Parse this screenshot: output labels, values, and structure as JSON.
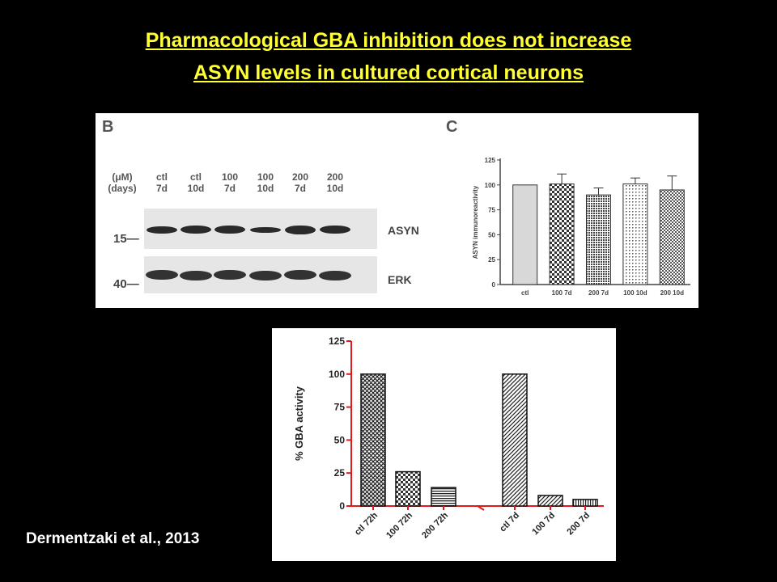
{
  "title": {
    "line1": "Pharmacological GBA inhibition does not increase",
    "line2": "ASYN levels in cultured cortical neurons"
  },
  "blot": {
    "panel_label": "B",
    "unit_label_1": "(μM)",
    "unit_label_2": "(days)",
    "lanes": [
      {
        "dose": "ctl",
        "days": "7d"
      },
      {
        "dose": "ctl",
        "days": "10d"
      },
      {
        "dose": "100",
        "days": "7d"
      },
      {
        "dose": "100",
        "days": "10d"
      },
      {
        "dose": "200",
        "days": "7d"
      },
      {
        "dose": "200",
        "days": "10d"
      }
    ],
    "rows": [
      {
        "protein": "ASYN",
        "marker": "15"
      },
      {
        "protein": "ERK",
        "marker": "40"
      }
    ]
  },
  "chart_data": [
    {
      "type": "bar",
      "panel_label": "C",
      "categories": [
        "ctl",
        "100 7d",
        "200 7d",
        "100 10d",
        "200 10d"
      ],
      "values": [
        100,
        101,
        90,
        101,
        95
      ],
      "errors": [
        0,
        10,
        7,
        6,
        14
      ],
      "ylabel": "ASYN immunoreactivity",
      "ylim": [
        0,
        125
      ],
      "yticks": [
        0,
        25,
        50,
        75,
        100,
        125
      ],
      "patterns": [
        "light-gray",
        "checker",
        "dense-dots",
        "sparse-dots",
        "fine-checker"
      ]
    },
    {
      "type": "bar",
      "categories": [
        "ctl 72h",
        "100 72h",
        "200 72h",
        "ctl 7d",
        "100 7d",
        "200 7d"
      ],
      "values": [
        100,
        26,
        14,
        100,
        8,
        5
      ],
      "ylabel": "% GBA activity",
      "ylim": [
        0,
        125
      ],
      "yticks": [
        0,
        25,
        50,
        75,
        100,
        125
      ],
      "axis_color": "#e01a1a",
      "patterns": [
        "crosshatch",
        "checker",
        "horizontal-lines",
        "diagonal-lines",
        "diagonal-lines",
        "vertical-lines"
      ]
    }
  ],
  "citation": "Dermentzaki et al.,  2013"
}
